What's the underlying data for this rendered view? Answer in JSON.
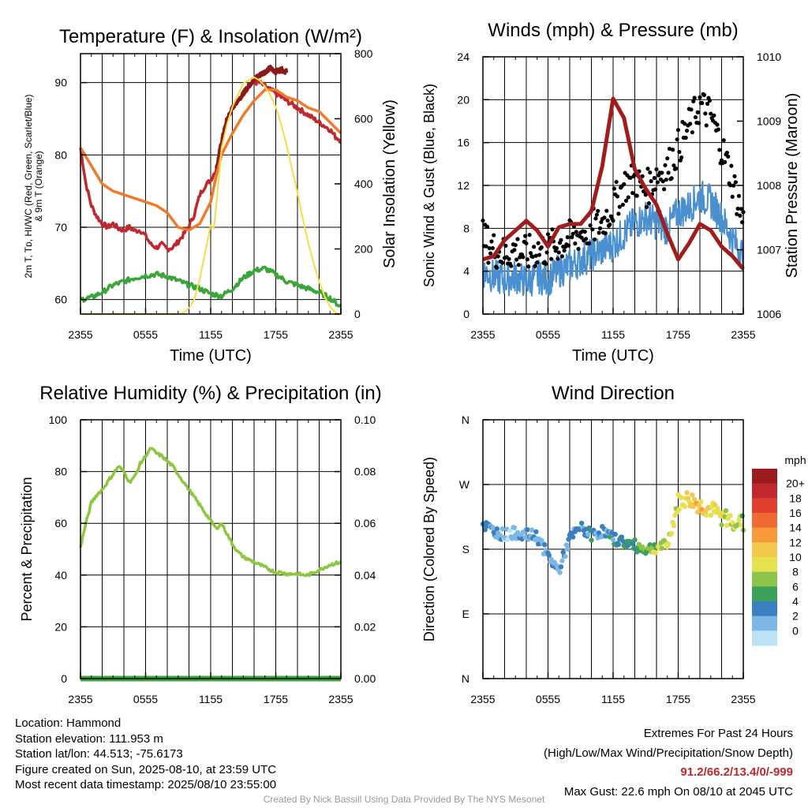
{
  "chart_data": [
    {
      "type": "line",
      "title": "Temperature (F) & Insolation (W/m²)",
      "xlabel": "Time (UTC)",
      "ylabel_left_lines": [
        "2m T, Tᴅ, HI/WC (Red, Green, Scarlet/Blue)",
        "& 9m T (Orange)"
      ],
      "ylabel_right": "Solar Insolation (Yellow)",
      "x_ticks": [
        "2355",
        "0555",
        "1155",
        "1755",
        "2355"
      ],
      "x_range_hours": [
        0,
        24
      ],
      "ylim_left": [
        58,
        94
      ],
      "y_ticks_left": [
        60,
        70,
        80,
        90
      ],
      "ylim_right": [
        0,
        880
      ],
      "y_ticks_right": [
        0,
        200,
        400,
        600,
        800
      ],
      "grid": true,
      "series": [
        {
          "color": "#c0282d",
          "axis": "left",
          "x": [
            0,
            0.5,
            1,
            1.5,
            2,
            2.5,
            3,
            3.5,
            4,
            4.5,
            5,
            5.5,
            6,
            6.5,
            7,
            7.5,
            8,
            8.5,
            9,
            9.5,
            10,
            10.5,
            11,
            11.5,
            12,
            12.5,
            13,
            13.5,
            14,
            14.5,
            15,
            15.5,
            16,
            16.5,
            17,
            17.5,
            18,
            18.5,
            19,
            19.5,
            20,
            20.5,
            21,
            21.5,
            22,
            22.5,
            23,
            23.5,
            24
          ],
          "values": [
            81,
            76,
            73,
            71.5,
            70.5,
            70,
            70.5,
            69.8,
            69.6,
            70,
            69.5,
            69.6,
            68.8,
            67.6,
            67.2,
            67.6,
            67,
            67.2,
            68,
            69,
            70.2,
            71.8,
            74.5,
            75.8,
            76.5,
            78,
            82,
            85,
            86.5,
            87.5,
            88.5,
            89.5,
            90,
            90,
            89.5,
            89,
            88.5,
            88,
            87.5,
            87,
            86.5,
            86,
            85.5,
            85,
            84.5,
            84,
            83.5,
            82.5,
            82
          ]
        },
        {
          "color": "#8b1a1a",
          "axis": "left",
          "x": [
            12.5,
            13,
            13.5,
            14,
            14.5,
            15,
            15.5,
            16,
            16.5,
            17,
            17.5,
            18,
            18.5,
            19
          ],
          "values": [
            78,
            82,
            85,
            86.5,
            87.5,
            88.5,
            89.5,
            90.5,
            91,
            91.5,
            92,
            91.5,
            91.8,
            91.5
          ]
        },
        {
          "color": "#f07a2a",
          "axis": "left",
          "x": [
            0,
            1,
            2,
            3,
            4,
            5,
            6,
            7,
            8,
            9,
            10,
            11,
            12,
            12.5,
            13,
            14,
            15,
            16,
            17,
            18,
            19,
            20,
            21,
            22,
            23,
            24
          ],
          "values": [
            81,
            78.5,
            76,
            75,
            74.5,
            74,
            73.5,
            73,
            72,
            70,
            69.6,
            70.5,
            73.5,
            77,
            80,
            83,
            85.5,
            87.5,
            89,
            89,
            88,
            87.5,
            86.5,
            86,
            84.5,
            83
          ]
        },
        {
          "color": "#3aa63a",
          "axis": "left",
          "x": [
            0,
            1,
            2,
            3,
            4,
            5,
            6,
            7,
            8,
            9,
            10,
            11,
            12,
            13,
            14,
            15,
            16,
            17,
            18,
            19,
            20,
            21,
            22,
            23,
            24
          ],
          "values": [
            60,
            60.3,
            61,
            62,
            62.5,
            63,
            63.3,
            63.5,
            63.2,
            62.6,
            62,
            61.5,
            60.8,
            60.5,
            61.5,
            63,
            64,
            64.3,
            63.5,
            62.5,
            62,
            61.5,
            61,
            60.2,
            59
          ]
        },
        {
          "color": "#f7dc43",
          "axis": "right",
          "x": [
            0,
            4,
            8,
            9,
            9.5,
            10,
            10.5,
            11,
            11.5,
            12,
            12.3,
            12.6,
            13,
            13.5,
            14,
            14.5,
            15,
            15.5,
            16,
            16.5,
            17,
            17.5,
            18,
            18.5,
            19,
            19.5,
            20,
            20.5,
            21,
            21.5,
            22,
            22.5,
            23,
            23.5,
            24
          ],
          "values": [
            0,
            0,
            0,
            0,
            5,
            20,
            50,
            120,
            210,
            300,
            290,
            400,
            560,
            640,
            700,
            740,
            780,
            790,
            800,
            790,
            770,
            740,
            700,
            640,
            570,
            490,
            410,
            320,
            240,
            170,
            110,
            60,
            25,
            5,
            0
          ]
        }
      ]
    },
    {
      "type": "line",
      "title": "Winds (mph) & Pressure (mb)",
      "xlabel": "Time (UTC)",
      "ylabel_left": "Sonic Wind & Gust (Blue, Black)",
      "ylabel_right": "Station Pressure (Maroon)",
      "x_ticks": [
        "2355",
        "0555",
        "1155",
        "1755",
        "2355"
      ],
      "x_range_hours": [
        0,
        24
      ],
      "ylim_left": [
        0,
        24
      ],
      "y_ticks_left": [
        0,
        4,
        8,
        12,
        16,
        20,
        24
      ],
      "ylim_right": [
        1006,
        1010
      ],
      "y_ticks_right": [
        1006,
        1007,
        1008,
        1009,
        1010
      ],
      "grid": true,
      "series": [
        {
          "color": "#4a90d0",
          "axis": "left",
          "x": [
            0,
            1,
            2,
            3,
            4,
            5,
            6,
            7,
            8,
            9,
            10,
            11,
            12,
            13,
            14,
            15,
            16,
            17,
            18,
            19,
            20,
            21,
            22,
            23,
            24
          ],
          "values": [
            4,
            3.5,
            3.2,
            3.5,
            3,
            3.5,
            3.2,
            4,
            4.5,
            5,
            5.5,
            6,
            6.5,
            7.5,
            8.5,
            9,
            8.5,
            8,
            9.5,
            10,
            11,
            10.5,
            9,
            7,
            5.5
          ]
        },
        {
          "color": "#000000",
          "axis": "left",
          "style": "points",
          "x": [
            0,
            1,
            2,
            3,
            4,
            5,
            6,
            7,
            8,
            9,
            10,
            11,
            12,
            13,
            14,
            15,
            16,
            17,
            18,
            19,
            20,
            21,
            22,
            23,
            24
          ],
          "values": [
            6.5,
            5.5,
            5,
            5.5,
            5,
            5.5,
            5.5,
            6,
            6.5,
            7,
            7.5,
            8,
            9.5,
            11.5,
            12,
            11,
            12.5,
            13,
            15,
            17,
            19,
            18,
            15,
            12,
            8
          ]
        },
        {
          "color": "#a31c1c",
          "axis": "right",
          "x": [
            0,
            1,
            2,
            3,
            4,
            5,
            6,
            7,
            8,
            9,
            10,
            11,
            12,
            13,
            14,
            15,
            16,
            17,
            18,
            19,
            20,
            21,
            22,
            23,
            24
          ],
          "values": [
            1006.85,
            1006.9,
            1007.15,
            1007.3,
            1007.45,
            1007.3,
            1007.05,
            1007.35,
            1007.4,
            1007.4,
            1007.6,
            1008.3,
            1009.35,
            1009.05,
            1008.25,
            1007.95,
            1007.7,
            1007.25,
            1006.85,
            1007.1,
            1007.4,
            1007.3,
            1007.05,
            1006.9,
            1006.7
          ]
        }
      ]
    },
    {
      "type": "line",
      "title": "Relative Humidity (%) & Precipitation (in)",
      "ylabel_left": "Percent & Precipitation",
      "x_ticks": [
        "2355",
        "0555",
        "1155",
        "1755",
        "2355"
      ],
      "x_range_hours": [
        0,
        24
      ],
      "ylim_left": [
        0,
        100
      ],
      "y_ticks_left": [
        0,
        20,
        40,
        60,
        80,
        100
      ],
      "ylim_right": [
        0,
        0.1
      ],
      "y_ticks_right": [
        "0.00",
        "0.02",
        "0.04",
        "0.06",
        "0.08",
        "0.10"
      ],
      "grid": true,
      "series": [
        {
          "color": "#8dc63f",
          "axis": "left",
          "x": [
            0,
            0.5,
            1,
            1.5,
            2,
            2.5,
            3,
            3.5,
            4,
            4.5,
            5,
            5.5,
            6,
            6.5,
            7,
            7.5,
            8,
            8.5,
            9,
            9.5,
            10,
            10.5,
            11,
            11.5,
            12,
            12.5,
            13,
            13.5,
            14,
            14.5,
            15,
            15.5,
            16,
            16.5,
            17,
            17.5,
            18,
            18.5,
            19,
            19.5,
            20,
            20.5,
            21,
            21.5,
            22,
            22.5,
            23,
            23.5,
            24
          ],
          "values": [
            51,
            60,
            68,
            71,
            73,
            76,
            79,
            82,
            80,
            76,
            78,
            83,
            86,
            89,
            87,
            86,
            84,
            82,
            79,
            76,
            73,
            70,
            67,
            64,
            61,
            58,
            60,
            56,
            52,
            49,
            47,
            46,
            45,
            44,
            43,
            42,
            41,
            41,
            40.5,
            40.5,
            40.5,
            40,
            40,
            41,
            42,
            43,
            44,
            44.5,
            45
          ]
        },
        {
          "color": "#3aa63a",
          "axis": "right",
          "x": [
            0,
            24
          ],
          "values": [
            0,
            0
          ]
        }
      ]
    },
    {
      "type": "scatter",
      "title": "Wind Direction",
      "ylabel_left": "Direction (Colored By Speed)",
      "x_ticks": [
        "2355",
        "0555",
        "1155",
        "1755",
        "2355"
      ],
      "x_range_hours": [
        0,
        24
      ],
      "y_ticks_left": [
        "N",
        "E",
        "S",
        "W",
        "N"
      ],
      "ylim_deg": [
        0,
        360
      ],
      "grid": true,
      "colorbar": {
        "title": "mph",
        "labels": [
          "20+",
          "18",
          "16",
          "14",
          "12",
          "10",
          "8",
          "6",
          "4",
          "2",
          "0"
        ],
        "colors": [
          "#9b1b1e",
          "#c0282d",
          "#e0402d",
          "#f06a33",
          "#f79a3c",
          "#f2c94c",
          "#e6e14e",
          "#8fc44a",
          "#3aa05a",
          "#3a7fc0",
          "#7db7e6",
          "#bfe3f6"
        ]
      },
      "series": [
        {
          "speed": [
            4,
            3,
            2,
            2,
            3,
            4,
            3,
            2,
            3,
            4,
            4,
            3,
            4,
            5,
            6,
            7,
            8,
            9,
            10,
            11,
            12,
            11,
            10,
            9,
            8
          ],
          "x": [
            0,
            1,
            2,
            3,
            4,
            5,
            6,
            7,
            8,
            9,
            10,
            11,
            12,
            13,
            14,
            15,
            16,
            17,
            18,
            19,
            20,
            21,
            22,
            23,
            24
          ],
          "values": [
            215,
            205,
            200,
            203,
            200,
            198,
            170,
            150,
            195,
            210,
            200,
            205,
            195,
            190,
            185,
            180,
            183,
            185,
            245,
            250,
            240,
            235,
            225,
            220,
            215
          ]
        }
      ]
    }
  ],
  "info_left": [
    "Location: Hammond",
    "Station elevation: 111.953 m",
    "Station lat/lon: 44.513; -75.6173",
    "Figure created on Sun, 2025-08-10, at 23:59 UTC",
    "Most recent data timestamp: 2025/08/10 23:55:00"
  ],
  "info_right": {
    "title": "Extremes For Past 24 Hours",
    "subtitle": "(High/Low/Max Wind/Precipitation/Snow Depth)",
    "values": "91.2/66.2/13.4/0/-999",
    "gust": "Max Gust: 22.6 mph On 08/10 at 2045 UTC"
  },
  "credit": "Created By Nick Bassill Using Data Provided By The NYS Mesonet"
}
